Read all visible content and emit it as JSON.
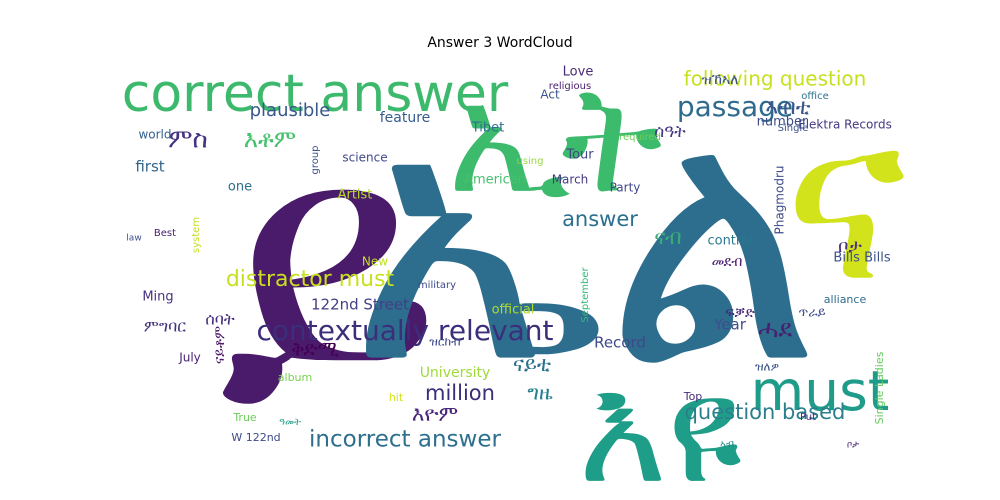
{
  "chart_data": {
    "type": "wordcloud",
    "title": "Answer 3 WordCloud",
    "words": [
      {
        "text": "ይ",
        "color": "#4a1a6b"
      },
      {
        "text": "ኤል",
        "color": "#2d6e8e"
      },
      {
        "text": "ኢት",
        "color": "#3dbb6c"
      },
      {
        "text": "ና",
        "color": "#d2e21b"
      },
      {
        "text": "እዩ",
        "color": "#1e9e88"
      },
      {
        "text": "correct answer",
        "color": "#3cb96c"
      },
      {
        "text": "must",
        "color": "#1f9c89"
      },
      {
        "text": "contextually relevant",
        "color": "#3b2f7b"
      },
      {
        "text": "following question",
        "color": "#c7e020"
      },
      {
        "text": "passage",
        "color": "#2f6b8e"
      },
      {
        "text": "distractor must",
        "color": "#c9e01e"
      },
      {
        "text": "incorrect answer",
        "color": "#2e6f8e"
      },
      {
        "text": "question based",
        "color": "#2b7f8d"
      },
      {
        "text": "answer",
        "color": "#2a6f8e"
      },
      {
        "text": "million",
        "color": "#3c2d7a"
      },
      {
        "text": "ሓደ",
        "color": "#481f6e"
      },
      {
        "text": "ምስ",
        "color": "#453281"
      },
      {
        "text": "እቶም",
        "color": "#47c16e"
      },
      {
        "text": "plausible",
        "color": "#38588c"
      },
      {
        "text": "ኣብቲ",
        "color": "#39558c"
      },
      {
        "text": "ናብ",
        "color": "#3aac79"
      },
      {
        "text": "ናይቲ",
        "color": "#2c728e"
      },
      {
        "text": "እዮም",
        "color": "#482677"
      },
      {
        "text": "ግዜ",
        "color": "#26818e"
      },
      {
        "text": "ሰዓት",
        "color": "#453781"
      },
      {
        "text": "ቦታ",
        "color": "#472d7b"
      },
      {
        "text": "first",
        "color": "#31668e"
      },
      {
        "text": "Year",
        "color": "#3d4e8a"
      },
      {
        "text": "Record",
        "color": "#3e4989"
      },
      {
        "text": "122nd Street",
        "color": "#433e85"
      },
      {
        "text": "feature",
        "color": "#365c8d"
      },
      {
        "text": "University",
        "color": "#a0da39"
      },
      {
        "text": "ዝኸኣለ",
        "color": "#3b528b"
      },
      {
        "text": "Love",
        "color": "#482979"
      },
      {
        "text": "Tibet",
        "color": "#2d708e"
      },
      {
        "text": "Tour",
        "color": "#404688"
      },
      {
        "text": "March",
        "color": "#443983"
      },
      {
        "text": "Party",
        "color": "#3f4788"
      },
      {
        "text": "American",
        "color": "#46c06f"
      },
      {
        "text": "Bills Bills",
        "color": "#3b528b"
      },
      {
        "text": "Phagmodru",
        "color": "#3e4a89"
      },
      {
        "text": "Elektra Records",
        "color": "#453882"
      },
      {
        "text": "number",
        "color": "#3d4d8a"
      },
      {
        "text": "world",
        "color": "#34608d"
      },
      {
        "text": "science",
        "color": "#3f4889"
      },
      {
        "text": "Artist",
        "color": "#b5de2b"
      },
      {
        "text": "control",
        "color": "#2a788e"
      },
      {
        "text": "album",
        "color": "#7ad151"
      },
      {
        "text": "official",
        "color": "#addc30"
      },
      {
        "text": "system",
        "color": "#c8e020"
      },
      {
        "text": "Single Ladies",
        "color": "#65cb5e"
      },
      {
        "text": "ናይቶም",
        "color": "#481769"
      },
      {
        "text": "ቅድሚ",
        "color": "#440154"
      },
      {
        "text": "ምግባር",
        "color": "#46337e"
      },
      {
        "text": "ሰባት",
        "color": "#472f7d"
      },
      {
        "text": "ዝርከብ",
        "color": "#3e4a89"
      },
      {
        "text": "ዝለዎ",
        "color": "#3a538b"
      },
      {
        "text": "መደብ",
        "color": "#481b6d"
      },
      {
        "text": "ፍቓድ",
        "color": "#482575"
      },
      {
        "text": "ጥራይ",
        "color": "#3e4c8a"
      },
      {
        "text": "True",
        "color": "#6ccd5a"
      },
      {
        "text": "hit",
        "color": "#d2e21b"
      },
      {
        "text": "Top",
        "color": "#472c7a"
      },
      {
        "text": "using",
        "color": "#97d83f"
      },
      {
        "text": "office",
        "color": "#2c728e"
      },
      {
        "text": "required",
        "color": "#6ccd5a"
      },
      {
        "text": "alliance",
        "color": "#2f6c8e"
      },
      {
        "text": "Act",
        "color": "#3a548c"
      },
      {
        "text": "religious",
        "color": "#481c6e"
      },
      {
        "text": "one",
        "color": "#2e6e8e"
      },
      {
        "text": "group",
        "color": "#3b518b"
      },
      {
        "text": "Ming",
        "color": "#46327e"
      },
      {
        "text": "military",
        "color": "#3e4989"
      },
      {
        "text": "July",
        "color": "#482173"
      },
      {
        "text": "Best",
        "color": "#481d6f"
      },
      {
        "text": "law",
        "color": "#3b528b"
      },
      {
        "text": "New",
        "color": "#c0df25"
      },
      {
        "text": "September",
        "color": "#35b779"
      },
      {
        "text": "Put",
        "color": "#482979"
      },
      {
        "text": "Single",
        "color": "#3b528b"
      },
      {
        "text": "W 122nd",
        "color": "#3e4a89"
      },
      {
        "text": "ቦታ",
        "color": "#482374"
      },
      {
        "text": "ኣብ",
        "color": "#24868e"
      },
      {
        "text": "ዓመት",
        "color": "#1fa187"
      }
    ]
  }
}
